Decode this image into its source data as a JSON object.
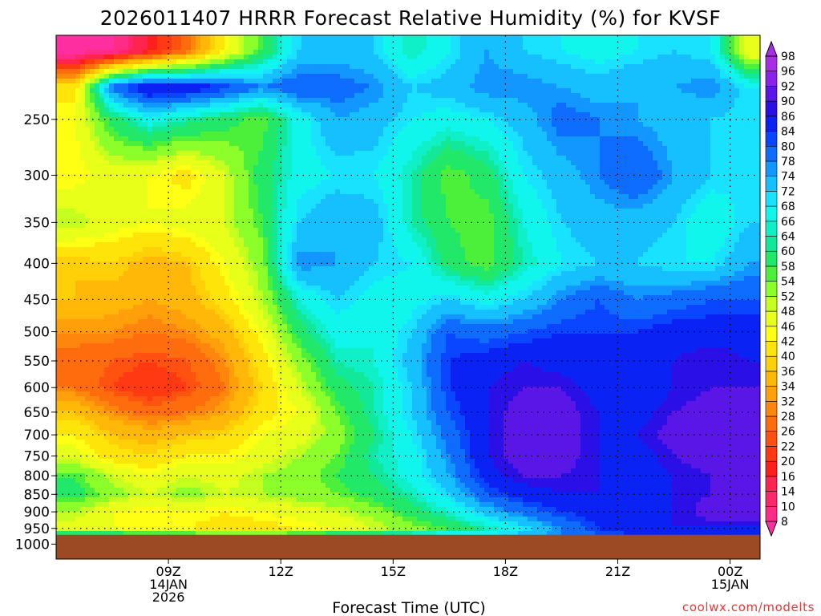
{
  "chart_data": {
    "type": "heatmap",
    "title": "2026011407 HRRR Forecast Relative Humidity (%) for KVSF",
    "xlabel": "Forecast Time (UTC)",
    "ylabel": "",
    "y_scale": "log",
    "y_inverted": true,
    "ylim": [
      1050,
      190
    ],
    "xlim": [
      6.0,
      24.8
    ],
    "y_ticks": [
      250,
      300,
      350,
      400,
      450,
      500,
      550,
      600,
      650,
      700,
      750,
      800,
      850,
      900,
      950,
      1000
    ],
    "x_ticks": [
      {
        "hour": 9,
        "lines": [
          "09Z",
          "14JAN",
          "2026"
        ]
      },
      {
        "hour": 12,
        "lines": [
          "12Z"
        ]
      },
      {
        "hour": 15,
        "lines": [
          "15Z"
        ]
      },
      {
        "hour": 18,
        "lines": [
          "18Z"
        ]
      },
      {
        "hour": 21,
        "lines": [
          "21Z"
        ]
      },
      {
        "hour": 24,
        "lines": [
          "00Z",
          "15JAN"
        ]
      }
    ],
    "grid": true,
    "surface_pressure": 970,
    "surface_color": "#9c4a24",
    "colorbar": {
      "levels": [
        8,
        10,
        14,
        16,
        20,
        22,
        26,
        28,
        32,
        34,
        36,
        40,
        42,
        46,
        48,
        52,
        54,
        58,
        60,
        64,
        66,
        68,
        72,
        74,
        78,
        80,
        84,
        86,
        90,
        92,
        96,
        98
      ],
      "colors": [
        "#ff2ea0",
        "#ff2b86",
        "#ff266b",
        "#ff2350",
        "#ff1e1e",
        "#ff3a12",
        "#ff5210",
        "#ff6c0e",
        "#ff860c",
        "#ffa00a",
        "#ffb808",
        "#ffcf08",
        "#ffe40a",
        "#ffff14",
        "#e8ff1a",
        "#c4ff20",
        "#8cff2a",
        "#4cf03a",
        "#22e86a",
        "#12e89a",
        "#10f0c8",
        "#10f6ec",
        "#18e2ff",
        "#16c0ff",
        "#1296ff",
        "#0e6cff",
        "#0a46ff",
        "#0a22f4",
        "#2a10e6",
        "#5a16e6",
        "#8a22ea",
        "#a82ee6"
      ]
    },
    "rh_grid": {
      "hours": [
        6.5,
        7.5,
        8.5,
        9.5,
        10.5,
        11.5,
        12.5,
        13.5,
        14.5,
        15.5,
        16.5,
        17.5,
        18.5,
        19.5,
        20.5,
        21.5,
        22.5,
        23.5,
        24.5
      ],
      "levels": [
        200,
        225,
        250,
        300,
        350,
        400,
        450,
        500,
        550,
        600,
        650,
        700,
        750,
        800,
        850,
        900,
        950,
        975
      ],
      "values": [
        [
          8,
          10,
          20,
          30,
          46,
          60,
          74,
          76,
          74,
          66,
          72,
          78,
          74,
          72,
          70,
          72,
          74,
          72,
          48
        ],
        [
          44,
          82,
          92,
          90,
          86,
          80,
          84,
          82,
          80,
          74,
          76,
          80,
          80,
          78,
          76,
          78,
          78,
          80,
          72
        ],
        [
          48,
          62,
          70,
          66,
          62,
          58,
          70,
          78,
          76,
          72,
          70,
          72,
          76,
          82,
          80,
          78,
          76,
          74,
          72
        ],
        [
          46,
          50,
          48,
          44,
          52,
          62,
          70,
          72,
          72,
          66,
          58,
          62,
          72,
          76,
          80,
          84,
          78,
          74,
          72
        ],
        [
          54,
          50,
          48,
          50,
          52,
          60,
          74,
          78,
          76,
          66,
          60,
          58,
          68,
          74,
          76,
          76,
          74,
          68,
          74
        ],
        [
          40,
          42,
          38,
          40,
          48,
          56,
          80,
          78,
          74,
          72,
          62,
          58,
          66,
          72,
          74,
          74,
          72,
          72,
          78
        ],
        [
          40,
          38,
          36,
          38,
          44,
          54,
          68,
          74,
          70,
          70,
          74,
          70,
          74,
          80,
          84,
          80,
          82,
          84,
          84
        ],
        [
          34,
          34,
          32,
          34,
          38,
          48,
          62,
          70,
          68,
          74,
          84,
          82,
          84,
          86,
          86,
          86,
          88,
          88,
          88
        ],
        [
          30,
          28,
          26,
          28,
          34,
          44,
          56,
          66,
          68,
          76,
          86,
          88,
          90,
          88,
          86,
          86,
          90,
          92,
          90
        ],
        [
          32,
          26,
          22,
          26,
          32,
          42,
          52,
          62,
          66,
          74,
          86,
          90,
          92,
          92,
          88,
          86,
          90,
          92,
          92
        ],
        [
          40,
          34,
          30,
          32,
          36,
          44,
          48,
          58,
          66,
          74,
          84,
          90,
          94,
          94,
          90,
          88,
          92,
          94,
          94
        ],
        [
          46,
          40,
          38,
          40,
          42,
          48,
          50,
          56,
          64,
          72,
          82,
          90,
          94,
          94,
          90,
          90,
          94,
          94,
          94
        ],
        [
          50,
          44,
          42,
          46,
          46,
          50,
          54,
          58,
          66,
          70,
          80,
          90,
          94,
          94,
          90,
          88,
          92,
          94,
          94
        ],
        [
          60,
          52,
          48,
          52,
          50,
          54,
          56,
          60,
          64,
          70,
          78,
          88,
          92,
          92,
          90,
          88,
          90,
          92,
          94
        ],
        [
          62,
          56,
          52,
          56,
          52,
          54,
          56,
          58,
          62,
          66,
          74,
          84,
          88,
          90,
          90,
          88,
          90,
          92,
          94
        ],
        [
          54,
          48,
          46,
          48,
          46,
          48,
          50,
          52,
          56,
          62,
          68,
          76,
          82,
          86,
          88,
          88,
          90,
          94,
          96
        ],
        [
          50,
          48,
          46,
          46,
          44,
          44,
          46,
          48,
          52,
          56,
          60,
          66,
          72,
          80,
          86,
          88,
          90,
          90,
          90
        ],
        [
          70,
          68,
          66,
          66,
          64,
          64,
          66,
          68,
          70,
          72,
          74,
          74,
          76,
          80,
          84,
          86,
          88,
          86,
          86
        ]
      ]
    }
  },
  "credit": "coolwx.com/modelts"
}
